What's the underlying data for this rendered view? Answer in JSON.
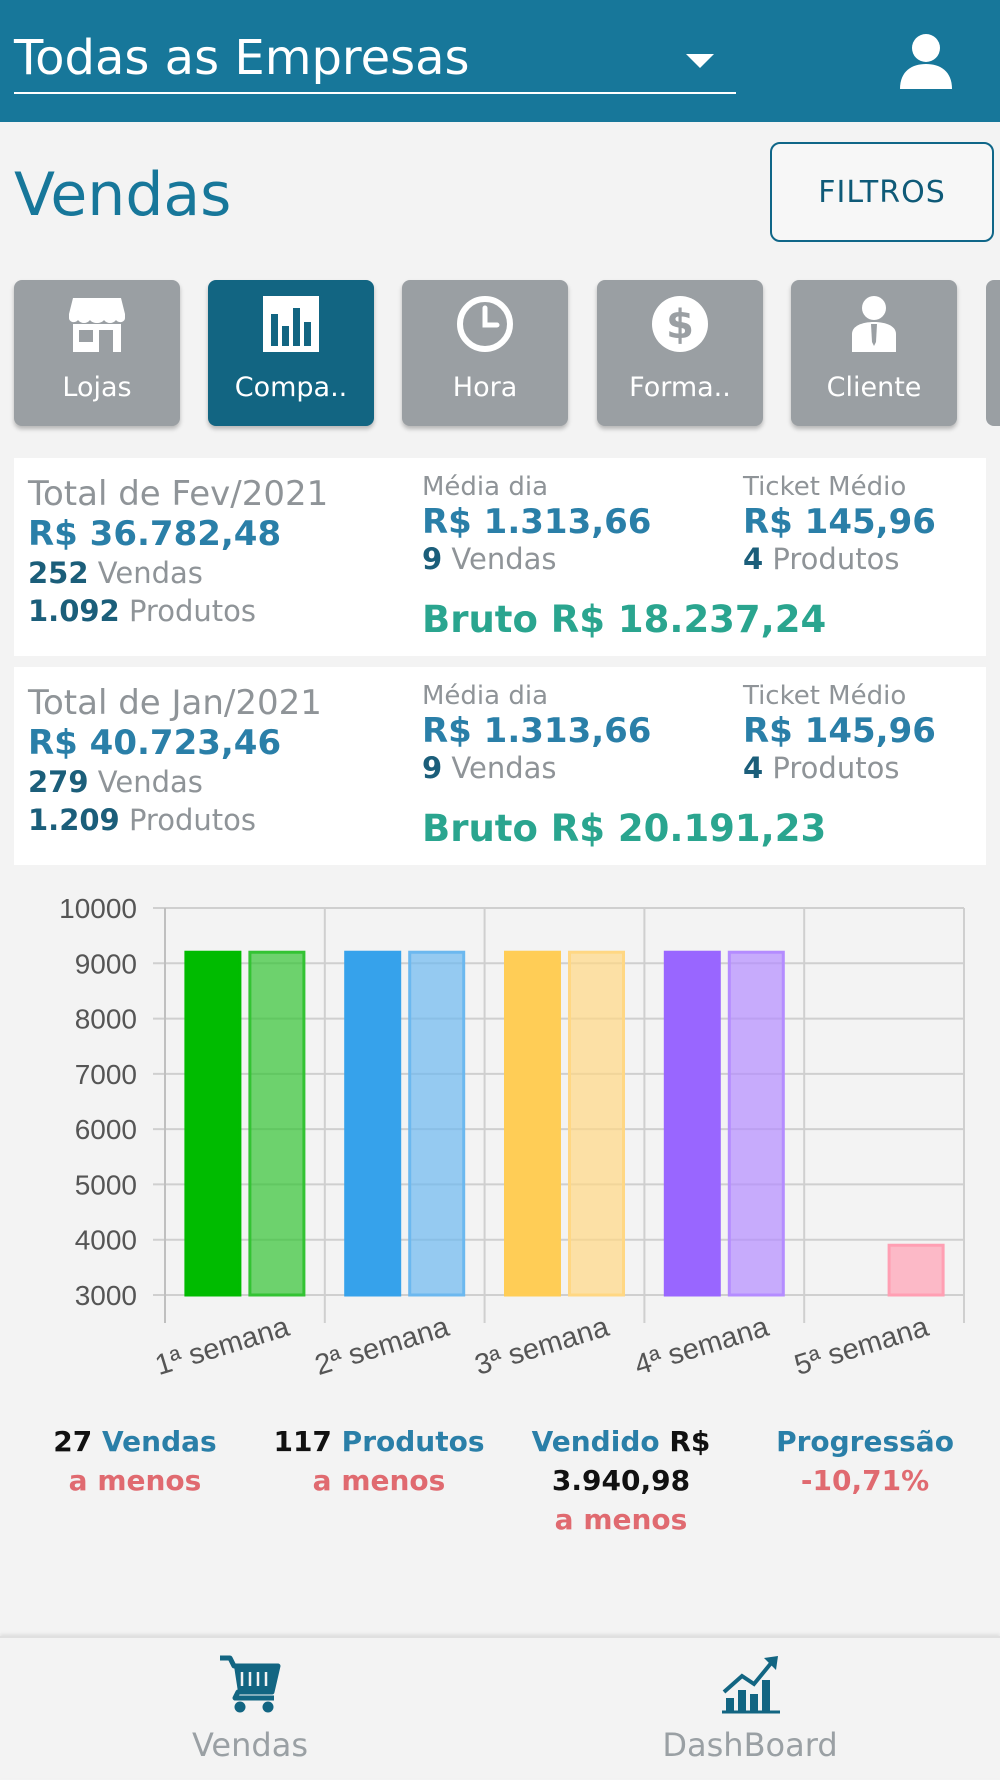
{
  "header": {
    "company_select_value": "Todas as Empresas"
  },
  "page": {
    "title": "Vendas",
    "filter_label": "FILTROS"
  },
  "categories": [
    {
      "label": "Lojas",
      "icon": "store-icon",
      "active": false
    },
    {
      "label": "Compa..",
      "icon": "bar-chart-icon",
      "active": true
    },
    {
      "label": "Hora",
      "icon": "clock-icon",
      "active": false
    },
    {
      "label": "Forma..",
      "icon": "dollar-icon",
      "active": false
    },
    {
      "label": "Cliente",
      "icon": "customer-icon",
      "active": false
    }
  ],
  "cards": [
    {
      "title": "Total de Fev/2021",
      "amount": "R$ 36.782,48",
      "sales_count": "252",
      "sales_label": "Vendas",
      "products_count": "1.092",
      "products_label": "Produtos",
      "avg_day_label": "Média dia",
      "avg_day_amount": "R$ 1.313,66",
      "avg_sales_count": "9",
      "avg_sales_label": "Vendas",
      "ticket_label": "Ticket Médio",
      "ticket_amount": "R$ 145,96",
      "ticket_products_count": "4",
      "ticket_products_label": "Produtos",
      "bruto": "Bruto R$ 18.237,24"
    },
    {
      "title": "Total de Jan/2021",
      "amount": "R$ 40.723,46",
      "sales_count": "279",
      "sales_label": "Vendas",
      "products_count": "1.209",
      "products_label": "Produtos",
      "avg_day_label": "Média dia",
      "avg_day_amount": "R$ 1.313,66",
      "avg_sales_count": "9",
      "avg_sales_label": "Vendas",
      "ticket_label": "Ticket Médio",
      "ticket_amount": "R$ 145,96",
      "ticket_products_count": "4",
      "ticket_products_label": "Produtos",
      "bruto": "Bruto R$ 20.191,23"
    }
  ],
  "chart_data": {
    "type": "bar",
    "categories": [
      "1ª semana",
      "2ª semana",
      "3ª semana",
      "4ª semana",
      "5ª semana"
    ],
    "series": [
      {
        "values": [
          9200,
          9200,
          9200,
          9200,
          null
        ]
      },
      {
        "values": [
          9200,
          9200,
          9200,
          9200,
          3900
        ]
      }
    ],
    "bar_colors": [
      [
        "#00bb00",
        "#33c333"
      ],
      [
        "#36a2eb",
        "#6cb8ef"
      ],
      [
        "#ffcd56",
        "#ffd783"
      ],
      [
        "#9966ff",
        "#b48cff"
      ],
      [
        "#ff6384",
        "#ff9fb3"
      ]
    ],
    "ylim": [
      3000,
      10000
    ],
    "yticks": [
      3000,
      4000,
      5000,
      6000,
      7000,
      8000,
      9000,
      10000
    ],
    "grid": true,
    "xlabel": "",
    "ylabel": "",
    "title": ""
  },
  "stats": {
    "sales_num": "27",
    "sales_word": "Vendas",
    "sales_less": "a menos",
    "products_num": "117",
    "products_word": "Produtos",
    "products_less": "a menos",
    "sold_word": "Vendido",
    "sold_currency": "R$",
    "sold_value": "3.940,98",
    "sold_less": "a menos",
    "progress_label": "Progressão",
    "progress_value": "-10,71%"
  },
  "bottom_nav": [
    {
      "label": "Vendas",
      "icon": "cart-icon"
    },
    {
      "label": "DashBoard",
      "icon": "growth-chart-icon"
    }
  ],
  "colors": {
    "primary": "#17779a",
    "active_tile": "#126582",
    "tile": "#9a9fa3",
    "accent_green": "#2aa58f",
    "negative": "#e06a70"
  }
}
